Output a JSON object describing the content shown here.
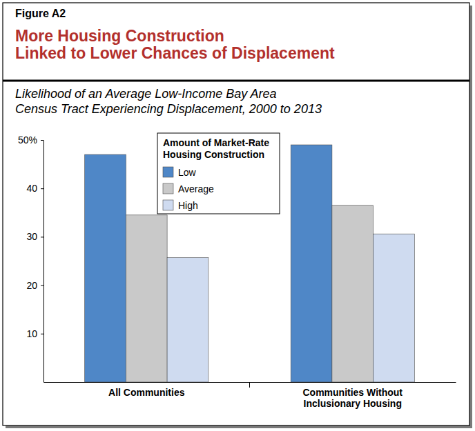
{
  "chart_data": {
    "type": "bar",
    "figure_label": "Figure A2",
    "title": "More Housing Construction\nLinked to Lower Chances of Displacement",
    "subtitle": "Likelihood of an Average Low-Income Bay Area\nCensus Tract Experiencing Displacement, 2000 to 2013",
    "legend_title": "Amount of Market-Rate\nHousing Construction",
    "categories": [
      "All Communities",
      "Communities Without\nInclusionary Housing"
    ],
    "series": [
      {
        "name": "Low",
        "color": "#4f87c7",
        "values": [
          47,
          49
        ]
      },
      {
        "name": "Average",
        "color": "#c9c9c9",
        "values": [
          34.5,
          36.5
        ]
      },
      {
        "name": "High",
        "color": "#cfdbf0",
        "values": [
          25.7,
          30.6
        ]
      }
    ],
    "ylim": [
      0,
      50
    ],
    "yticks": [
      10,
      20,
      30,
      40,
      {
        "value": 50,
        "label": "50%"
      }
    ],
    "grid": false,
    "legend": "top"
  }
}
